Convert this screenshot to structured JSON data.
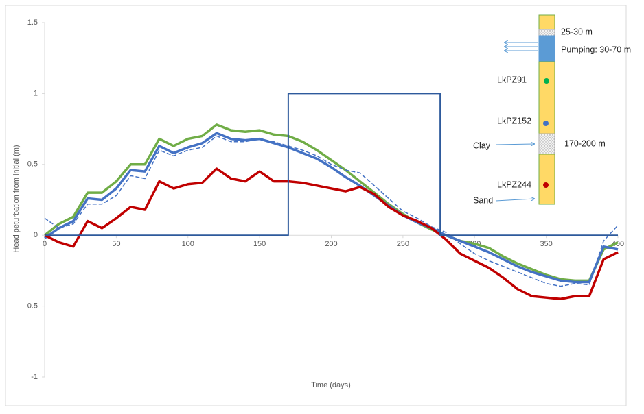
{
  "chart_data": {
    "type": "line",
    "ylabel": "Head peturbation from initial (m)",
    "xlabel": "Time (days)",
    "xlim": [
      0,
      400
    ],
    "ylim": [
      -1,
      1.5
    ],
    "xticks": [
      0,
      50,
      100,
      150,
      200,
      250,
      300,
      350,
      400
    ],
    "yticks": [
      -1,
      -0.5,
      0,
      0.5,
      1,
      1.5
    ],
    "grid": false,
    "x": [
      0,
      10,
      20,
      30,
      40,
      50,
      60,
      70,
      80,
      90,
      100,
      110,
      120,
      130,
      140,
      150,
      160,
      170,
      180,
      190,
      200,
      210,
      220,
      230,
      240,
      250,
      260,
      270,
      280,
      290,
      300,
      310,
      320,
      330,
      340,
      350,
      360,
      370,
      380,
      390,
      400
    ],
    "series": [
      {
        "color": "#70ad47",
        "values": [
          0,
          0.08,
          0.13,
          0.3,
          0.3,
          0.38,
          0.5,
          0.5,
          0.68,
          0.63,
          0.68,
          0.7,
          0.78,
          0.74,
          0.73,
          0.74,
          0.71,
          0.7,
          0.66,
          0.6,
          0.53,
          0.46,
          0.38,
          0.3,
          0.22,
          0.15,
          0.09,
          0.04,
          0,
          -0.04,
          -0.06,
          -0.09,
          -0.15,
          -0.2,
          -0.24,
          -0.28,
          -0.31,
          -0.32,
          -0.32,
          -0.1,
          -0.05
        ]
      },
      {
        "color": "#4472c4",
        "values": [
          -0.02,
          0.05,
          0.1,
          0.26,
          0.25,
          0.33,
          0.46,
          0.45,
          0.63,
          0.58,
          0.62,
          0.65,
          0.72,
          0.68,
          0.67,
          0.68,
          0.65,
          0.62,
          0.58,
          0.54,
          0.48,
          0.41,
          0.35,
          0.28,
          0.21,
          0.14,
          0.09,
          0.05,
          0,
          -0.04,
          -0.08,
          -0.12,
          -0.17,
          -0.22,
          -0.26,
          -0.29,
          -0.32,
          -0.33,
          -0.33,
          -0.08,
          -0.1
        ]
      },
      {
        "color": "#4472c4",
        "dashed": true,
        "values": [
          0.12,
          0.05,
          0.08,
          0.22,
          0.22,
          0.28,
          0.42,
          0.4,
          0.6,
          0.56,
          0.6,
          0.62,
          0.7,
          0.66,
          0.66,
          0.68,
          0.66,
          0.63,
          0.6,
          0.56,
          0.5,
          0.46,
          0.44,
          0.35,
          0.26,
          0.17,
          0.12,
          0.06,
          0.02,
          -0.06,
          -0.13,
          -0.18,
          -0.22,
          -0.26,
          -0.3,
          -0.34,
          -0.36,
          -0.34,
          -0.35,
          -0.04,
          0.07
        ]
      },
      {
        "color": "#c00000",
        "values": [
          0,
          -0.05,
          -0.08,
          0.1,
          0.05,
          0.12,
          0.2,
          0.18,
          0.38,
          0.33,
          0.36,
          0.37,
          0.47,
          0.4,
          0.38,
          0.45,
          0.38,
          0.38,
          0.37,
          0.35,
          0.33,
          0.31,
          0.34,
          0.29,
          0.2,
          0.14,
          0.1,
          0.05,
          -0.03,
          -0.13,
          -0.18,
          -0.23,
          -0.3,
          -0.38,
          -0.43,
          -0.44,
          -0.45,
          -0.43,
          -0.43,
          -0.17,
          -0.12
        ]
      },
      {
        "color": "#2e5a9c",
        "x": [
          0,
          170,
          170,
          276,
          276,
          400
        ],
        "values": [
          0,
          0,
          1,
          1,
          0,
          0
        ]
      }
    ],
    "annotations": [
      "25-30 m",
      "Pumping: 30-70 m",
      "LkPZ91",
      "LkPZ152",
      "Clay",
      "170-200 m",
      "LkPZ244",
      "Sand"
    ]
  }
}
